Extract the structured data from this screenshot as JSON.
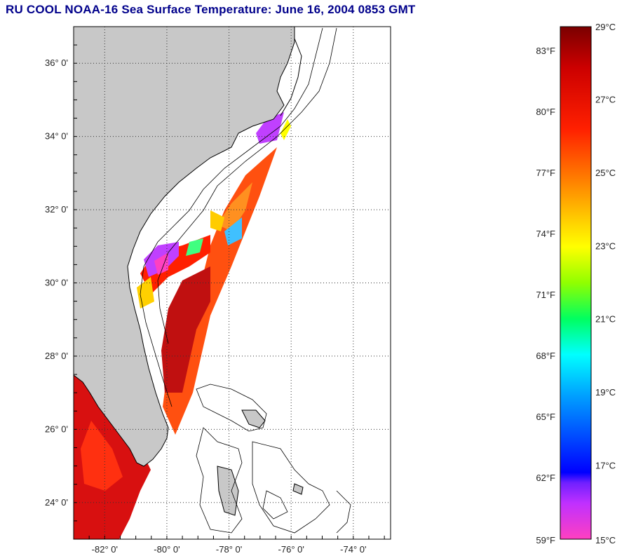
{
  "title": "RU COOL  NOAA-16  Sea Surface Temperature:  June 16, 2004 0853 GMT",
  "map": {
    "lon_range": [
      -83.0,
      -72.8
    ],
    "lat_range": [
      23.0,
      37.0
    ],
    "lat_ticks": [
      {
        "value": 36,
        "label": "36° 0'"
      },
      {
        "value": 34,
        "label": "34° 0'"
      },
      {
        "value": 32,
        "label": "32° 0'"
      },
      {
        "value": 30,
        "label": "30° 0'"
      },
      {
        "value": 28,
        "label": "28° 0'"
      },
      {
        "value": 26,
        "label": "26° 0'"
      },
      {
        "value": 24,
        "label": "24° 0'"
      }
    ],
    "lon_ticks": [
      {
        "value": -82,
        "label": "-82° 0'"
      },
      {
        "value": -80,
        "label": "-80° 0'"
      },
      {
        "value": -78,
        "label": "-78° 0'"
      },
      {
        "value": -76,
        "label": "-76° 0'"
      },
      {
        "value": -74,
        "label": "-74° 0'"
      }
    ],
    "grid": "dotted",
    "colors": {
      "land": "#c8c8c8",
      "no_data": "#ffffff",
      "contour": "#000000"
    }
  },
  "colorbar": {
    "celsius_labels": [
      "29°C",
      "27°C",
      "25°C",
      "23°C",
      "21°C",
      "19°C",
      "17°C",
      "15°C"
    ],
    "fahrenheit_labels": [
      "83°F",
      "80°F",
      "77°F",
      "74°F",
      "71°F",
      "68°F",
      "65°F",
      "62°F",
      "59°F"
    ],
    "celsius_range": [
      15,
      29
    ],
    "fahrenheit_range": [
      59,
      84.2
    ],
    "gradient_colors": [
      "#8b0000",
      "#ff0000",
      "#ff8000",
      "#ffff00",
      "#80ff00",
      "#00ffff",
      "#0080ff",
      "#0000ff",
      "#8000ff",
      "#ff00ff",
      "#ff40c0"
    ]
  }
}
